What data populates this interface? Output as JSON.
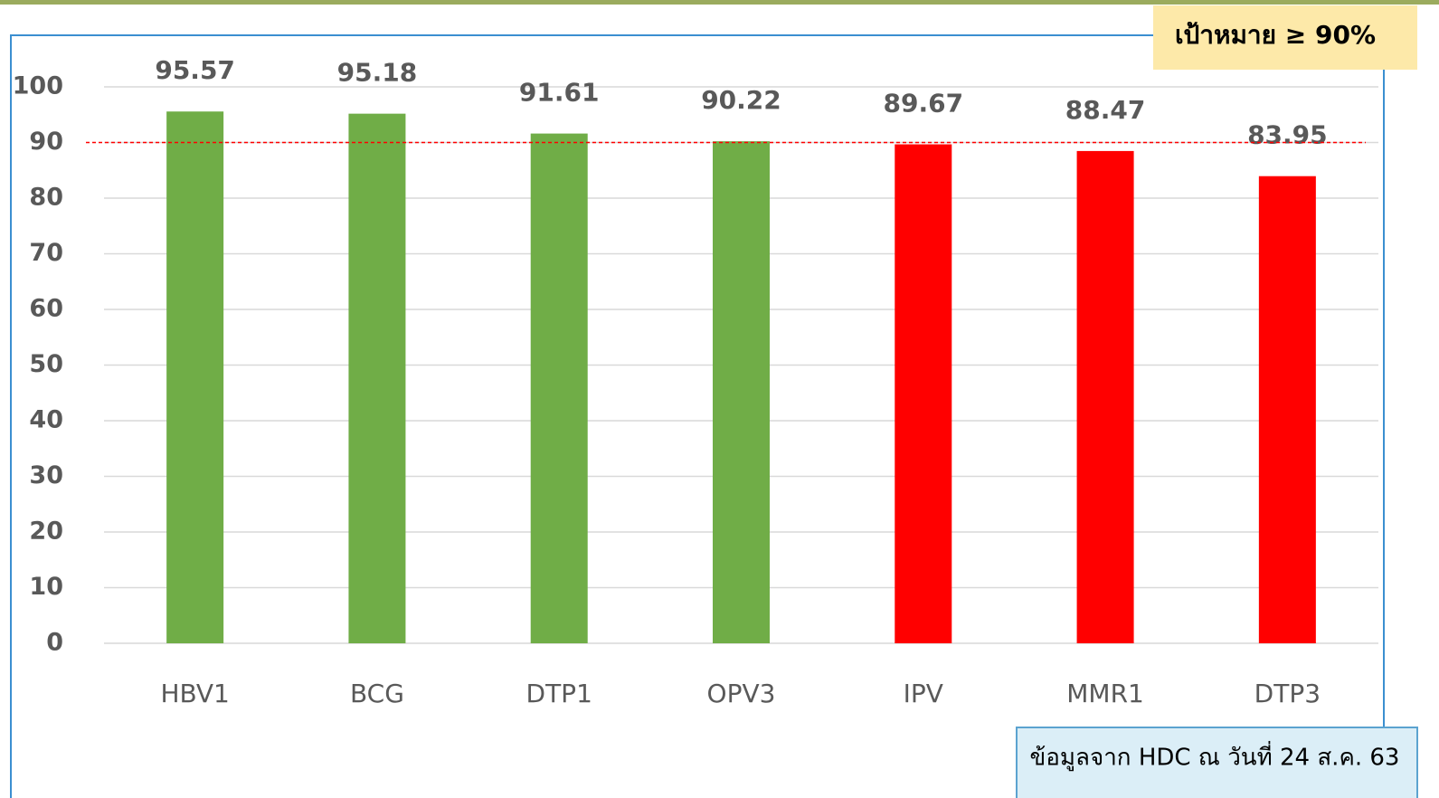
{
  "chart_data": {
    "type": "bar",
    "categories": [
      "HBV1",
      "BCG",
      "DTP1",
      "OPV3",
      "IPV",
      "MMR1",
      "DTP3"
    ],
    "values": [
      95.57,
      95.18,
      91.61,
      90.22,
      89.67,
      88.47,
      83.95
    ],
    "colors": [
      "#70ad47",
      "#70ad47",
      "#70ad47",
      "#70ad47",
      "#ff0000",
      "#ff0000",
      "#ff0000"
    ],
    "ylim": [
      0,
      100
    ],
    "yticks": [
      0,
      10,
      20,
      30,
      40,
      50,
      60,
      70,
      80,
      90,
      100
    ],
    "grid": true,
    "target": 90,
    "target_color": "#ff0000",
    "annotations": [
      "เป้าหมาย ≥ 90%",
      "ข้อมูลจาก HDC ณ วันที่ 24 ส.ค. 63"
    ]
  }
}
